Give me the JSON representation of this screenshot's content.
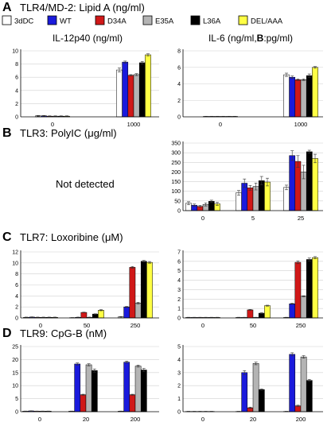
{
  "legend": [
    {
      "name": "3dDC",
      "color": "#ffffff"
    },
    {
      "name": "WT",
      "color": "#1a1adc"
    },
    {
      "name": "D34A",
      "color": "#d01818"
    },
    {
      "name": "E35A",
      "color": "#b4b4b4"
    },
    {
      "name": "L36A",
      "color": "#000000"
    },
    {
      "name": "DEL/AAA",
      "color": "#ffff44"
    }
  ],
  "panels": [
    {
      "letter": "A",
      "title": "TLR4/MD-2: Lipid A (ng/ml)"
    },
    {
      "letter": "B",
      "title": "TLR3: PolyIC (μg/ml)"
    },
    {
      "letter": "C",
      "title": "TLR7: Loxoribine (μM)"
    },
    {
      "letter": "D",
      "title": "TLR9: CpG-B (nM)"
    }
  ],
  "not_detected": "Not detected",
  "chart_data": [
    {
      "id": "A-left",
      "type": "bar",
      "title": "IL-12p40 (ng/ml)",
      "categories": [
        "0",
        "1000"
      ],
      "ylim": [
        0,
        10
      ],
      "yticks": [
        0,
        2,
        4,
        6,
        8,
        10
      ],
      "series": [
        {
          "name": "3dDC",
          "values": [
            0.15,
            7.1
          ],
          "err": [
            0.05,
            0.3
          ]
        },
        {
          "name": "WT",
          "values": [
            0.15,
            8.3
          ],
          "err": [
            0.05,
            0.15
          ]
        },
        {
          "name": "D34A",
          "values": [
            0.1,
            6.3
          ],
          "err": [
            0.05,
            0.1
          ]
        },
        {
          "name": "E35A",
          "values": [
            0.1,
            6.4
          ],
          "err": [
            0.05,
            0.15
          ]
        },
        {
          "name": "L36A",
          "values": [
            0.1,
            8.2
          ],
          "err": [
            0.05,
            0.2
          ]
        },
        {
          "name": "DEL/AAA",
          "values": [
            0.1,
            9.4
          ],
          "err": [
            0.05,
            0.15
          ]
        }
      ]
    },
    {
      "id": "A-right",
      "type": "bar",
      "title_plain": "IL-6 (ng/ml,",
      "title_bold": "B",
      "title_end": ":pg/ml)",
      "categories": [
        "0",
        "1000"
      ],
      "ylim": [
        0,
        8
      ],
      "yticks": [
        0,
        2,
        4,
        6,
        8
      ],
      "series": [
        {
          "name": "3dDC",
          "values": [
            0.05,
            5.1
          ],
          "err": [
            0.02,
            0.2
          ]
        },
        {
          "name": "WT",
          "values": [
            0.05,
            4.8
          ],
          "err": [
            0.02,
            0.15
          ]
        },
        {
          "name": "D34A",
          "values": [
            0.05,
            4.5
          ],
          "err": [
            0.02,
            0.1
          ]
        },
        {
          "name": "E35A",
          "values": [
            0.05,
            4.5
          ],
          "err": [
            0.02,
            0.1
          ]
        },
        {
          "name": "L36A",
          "values": [
            0.05,
            5.0
          ],
          "err": [
            0.02,
            0.2
          ]
        },
        {
          "name": "DEL/AAA",
          "values": [
            0.05,
            6.0
          ],
          "err": [
            0.02,
            0.1
          ]
        }
      ]
    },
    {
      "id": "B-right",
      "type": "bar",
      "categories": [
        "0",
        "5",
        "25"
      ],
      "ylim": [
        0,
        350
      ],
      "yticks": [
        0,
        50,
        100,
        150,
        200,
        250,
        300,
        350
      ],
      "series": [
        {
          "name": "3dDC",
          "values": [
            38,
            92,
            120
          ],
          "err": [
            8,
            12,
            12
          ]
        },
        {
          "name": "WT",
          "values": [
            28,
            142,
            285
          ],
          "err": [
            6,
            22,
            25
          ]
        },
        {
          "name": "D34A",
          "values": [
            22,
            118,
            255
          ],
          "err": [
            5,
            12,
            30
          ]
        },
        {
          "name": "E35A",
          "values": [
            32,
            125,
            200
          ],
          "err": [
            8,
            18,
            35
          ]
        },
        {
          "name": "L36A",
          "values": [
            48,
            155,
            305
          ],
          "err": [
            6,
            22,
            8
          ]
        },
        {
          "name": "DEL/AAA",
          "values": [
            35,
            148,
            270
          ],
          "err": [
            8,
            20,
            22
          ]
        }
      ]
    },
    {
      "id": "C-left",
      "type": "bar",
      "categories": [
        "0",
        "50",
        "250"
      ],
      "ylim": [
        0,
        12
      ],
      "yticks": [
        0,
        2,
        4,
        6,
        8,
        10,
        12
      ],
      "series": [
        {
          "name": "3dDC",
          "values": [
            0.1,
            0.05,
            0.2
          ],
          "err": [
            0.05,
            0.02,
            0.05
          ]
        },
        {
          "name": "WT",
          "values": [
            0.15,
            0.1,
            2.0
          ],
          "err": [
            0.05,
            0.05,
            0.1
          ]
        },
        {
          "name": "D34A",
          "values": [
            0.1,
            1.0,
            9.2
          ],
          "err": [
            0.05,
            0.05,
            0.15
          ]
        },
        {
          "name": "E35A",
          "values": [
            0.1,
            0.1,
            2.7
          ],
          "err": [
            0.05,
            0.05,
            0.15
          ]
        },
        {
          "name": "L36A",
          "values": [
            0.1,
            0.7,
            10.3
          ],
          "err": [
            0.05,
            0.05,
            0.15
          ]
        },
        {
          "name": "DEL/AAA",
          "values": [
            0.1,
            1.4,
            10.1
          ],
          "err": [
            0.05,
            0.1,
            0.15
          ]
        }
      ]
    },
    {
      "id": "C-right",
      "type": "bar",
      "categories": [
        "0",
        "50",
        "250"
      ],
      "ylim": [
        0,
        7
      ],
      "yticks": [
        0,
        1,
        2,
        3,
        4,
        5,
        6,
        7
      ],
      "series": [
        {
          "name": "3dDC",
          "values": [
            0.05,
            0.05,
            0.05
          ],
          "err": [
            0.02,
            0.02,
            0.02
          ]
        },
        {
          "name": "WT",
          "values": [
            0.05,
            0.05,
            1.5
          ],
          "err": [
            0.02,
            0.02,
            0.05
          ]
        },
        {
          "name": "D34A",
          "values": [
            0.05,
            0.85,
            5.9
          ],
          "err": [
            0.02,
            0.05,
            0.15
          ]
        },
        {
          "name": "E35A",
          "values": [
            0.05,
            0.05,
            2.3
          ],
          "err": [
            0.02,
            0.02,
            0.05
          ]
        },
        {
          "name": "L36A",
          "values": [
            0.05,
            0.5,
            6.2
          ],
          "err": [
            0.02,
            0.05,
            0.15
          ]
        },
        {
          "name": "DEL/AAA",
          "values": [
            0.05,
            1.3,
            6.4
          ],
          "err": [
            0.02,
            0.05,
            0.1
          ]
        }
      ]
    },
    {
      "id": "D-left",
      "type": "bar",
      "categories": [
        "0",
        "20",
        "200"
      ],
      "ylim": [
        0,
        25
      ],
      "yticks": [
        0,
        5,
        10,
        15,
        20,
        25
      ],
      "series": [
        {
          "name": "3dDC",
          "values": [
            0.2,
            0.2,
            0.2
          ],
          "err": [
            0.05,
            0.05,
            0.05
          ]
        },
        {
          "name": "WT",
          "values": [
            0.3,
            18.3,
            19.0
          ],
          "err": [
            0.05,
            0.4,
            0.4
          ]
        },
        {
          "name": "D34A",
          "values": [
            0.2,
            6.5,
            6.5
          ],
          "err": [
            0.05,
            0.2,
            0.2
          ]
        },
        {
          "name": "E35A",
          "values": [
            0.2,
            18.0,
            17.5
          ],
          "err": [
            0.05,
            0.4,
            0.4
          ]
        },
        {
          "name": "L36A",
          "values": [
            0.2,
            15.8,
            16.0
          ],
          "err": [
            0.05,
            0.6,
            0.6
          ]
        },
        {
          "name": "DEL/AAA",
          "values": [
            0,
            0,
            0
          ],
          "err": [
            0,
            0,
            0
          ]
        }
      ]
    },
    {
      "id": "D-right",
      "type": "bar",
      "categories": [
        "0",
        "20",
        "200"
      ],
      "ylim": [
        0,
        5
      ],
      "yticks": [
        0,
        1,
        2,
        3,
        4,
        5
      ],
      "series": [
        {
          "name": "3dDC",
          "values": [
            0.02,
            0.02,
            0.02
          ],
          "err": [
            0.01,
            0.01,
            0.01
          ]
        },
        {
          "name": "WT",
          "values": [
            0.02,
            3.0,
            4.4
          ],
          "err": [
            0.01,
            0.15,
            0.12
          ]
        },
        {
          "name": "D34A",
          "values": [
            0.02,
            0.3,
            0.45
          ],
          "err": [
            0.01,
            0.05,
            0.05
          ]
        },
        {
          "name": "E35A",
          "values": [
            0.02,
            3.7,
            4.2
          ],
          "err": [
            0.01,
            0.1,
            0.1
          ]
        },
        {
          "name": "L36A",
          "values": [
            0.02,
            1.7,
            2.4
          ],
          "err": [
            0.01,
            0.05,
            0.08
          ]
        },
        {
          "name": "DEL/AAA",
          "values": [
            0,
            0,
            0
          ],
          "err": [
            0,
            0,
            0
          ]
        }
      ]
    }
  ]
}
